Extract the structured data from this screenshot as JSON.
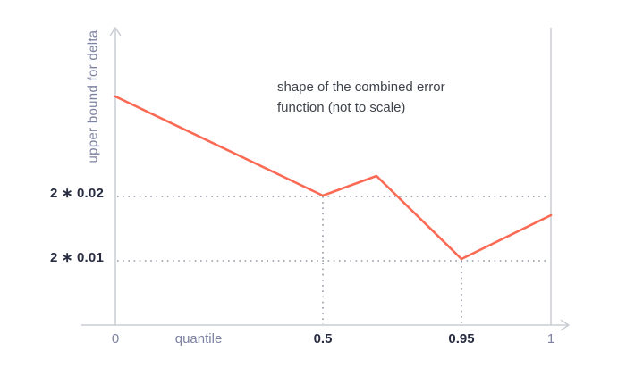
{
  "colors": {
    "accent": "#fb6a54",
    "axis": "#c9cdd3",
    "grid": "#9197a3",
    "dark": "#272c41",
    "slate": "#7c82a1",
    "title": "#3f434b",
    "bg": "#ffffff"
  },
  "chart_data": {
    "type": "line",
    "title": "shape of the combined error function (not to scale)",
    "xlabel": "quantile",
    "ylabel": "upper bound for delta",
    "not_to_scale": true,
    "legend": "none",
    "line_color": "#fb6a54",
    "x_ticks": [
      {
        "label": "0",
        "pos": 0.0,
        "style": "muted"
      },
      {
        "label": "0.5",
        "pos": 0.4764,
        "style": "strong"
      },
      {
        "label": "0.95",
        "pos": 0.7947,
        "style": "strong"
      },
      {
        "label": "1",
        "pos": 1.0,
        "style": "muted"
      }
    ],
    "xlabel_pos": 0.191,
    "y_gridlines": [
      {
        "label": "2 ∗ 0.02",
        "value": 0.04,
        "pos": 0.5688
      },
      {
        "label": "2 ∗ 0.01",
        "value": 0.02,
        "pos": 0.7844
      }
    ],
    "droplines": [
      {
        "at": "0.5",
        "x": 0.4764,
        "from_y": 0.5688
      },
      {
        "at": "0.95",
        "x": 0.7947,
        "from_y": 0.7844
      }
    ],
    "line_points": [
      [
        0.0,
        0.2335
      ],
      [
        0.4764,
        0.5659
      ],
      [
        0.5996,
        0.5
      ],
      [
        0.7947,
        0.7784
      ],
      [
        1.0,
        0.6317
      ]
    ],
    "key_points": [
      {
        "quantile": "0.5",
        "upper_bound": "2 ∗ 0.02"
      },
      {
        "quantile": "0.95",
        "upper_bound": "2 ∗ 0.01"
      }
    ]
  }
}
